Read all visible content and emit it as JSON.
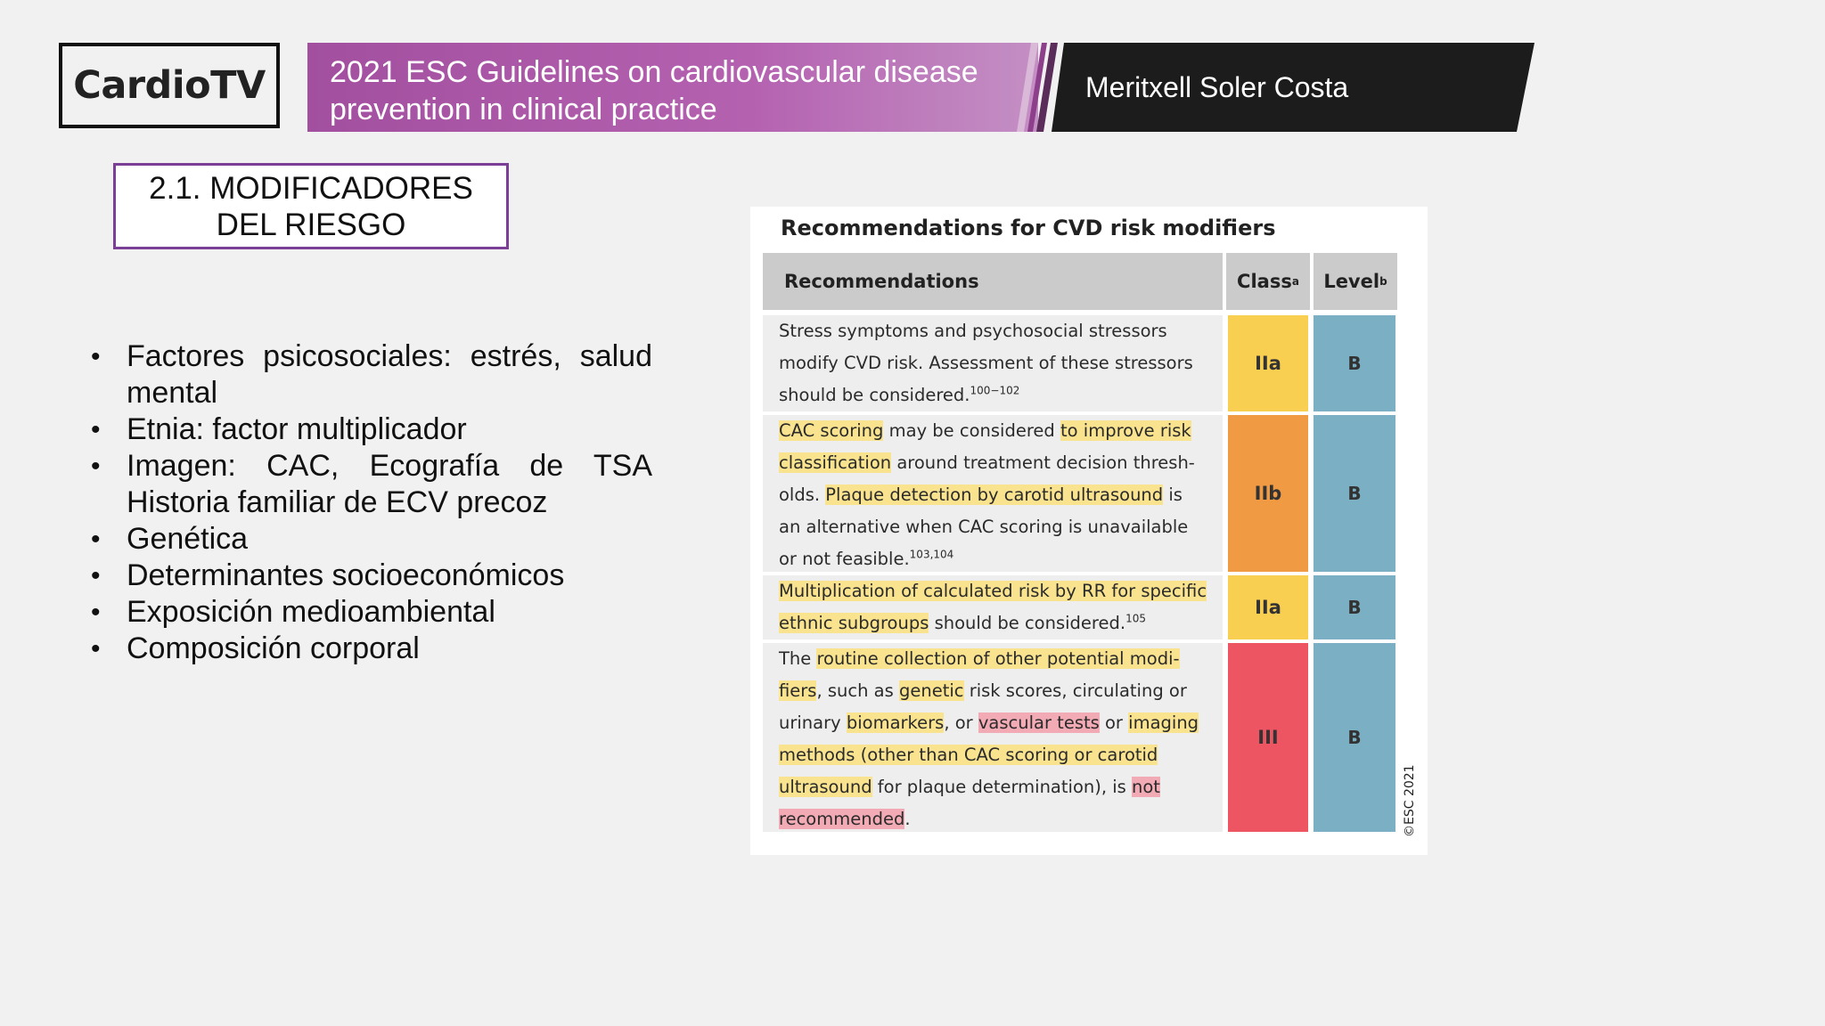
{
  "header": {
    "logo": "CardioTV",
    "title_line1": "2021 ESC Guidelines on cardiovascular disease",
    "title_line2": "prevention in clinical practice",
    "presenter": "Meritxell Soler Costa",
    "colors": {
      "title_band": "#a24f9f",
      "name_band": "#1c1c1c",
      "section_border": "#7b3f98"
    }
  },
  "section": {
    "line1": "2.1. MODIFICADORES",
    "line2": "DEL RIESGO"
  },
  "bullets": [
    "Factores psicosociales: estrés, salud mental",
    "Etnia: factor multiplicador",
    "Imagen: CAC, Ecografía de TSA Historia familiar de ECV precoz",
    "Genética",
    "Determinantes socioeconómicos",
    "Exposición medioambiental",
    "Composición corporal"
  ],
  "table": {
    "title": "Recommendations for CVD risk modifiers",
    "headers": {
      "recommendations": "Recommendations",
      "class": "Class",
      "class_sup": "a",
      "level": "Level",
      "level_sup": "b"
    },
    "rows": [
      {
        "class": "IIa",
        "level": "B",
        "class_color": "#f9cf52",
        "lines": [
          [
            {
              "t": "Stress symptoms and psychosocial stressors"
            }
          ],
          [
            {
              "t": "modify CVD risk. Assessment of these stressors"
            }
          ],
          [
            {
              "t": "should be considered."
            },
            {
              "t": "100−102",
              "sup": true
            }
          ]
        ]
      },
      {
        "class": "IIb",
        "level": "B",
        "class_color": "#f09a43",
        "lines": [
          [
            {
              "t": "CAC scoring",
              "hl": "y"
            },
            {
              "t": " may be considered "
            },
            {
              "t": "to improve risk",
              "hl": "y"
            }
          ],
          [
            {
              "t": "classification",
              "hl": "y"
            },
            {
              "t": " around treatment decision thresh-"
            }
          ],
          [
            {
              "t": "olds. "
            },
            {
              "t": "Plaque detection by carotid ultrasound",
              "hl": "y"
            },
            {
              "t": " is"
            }
          ],
          [
            {
              "t": "an alternative when CAC scoring is unavailable"
            }
          ],
          [
            {
              "t": "or not feasible."
            },
            {
              "t": "103,104",
              "sup": true
            }
          ]
        ]
      },
      {
        "class": "IIa",
        "level": "B",
        "class_color": "#f9cf52",
        "lines": [
          [
            {
              "t": "Multiplication of calculated risk by RR for specific",
              "hl": "y"
            }
          ],
          [
            {
              "t": "ethnic subgroups",
              "hl": "y"
            },
            {
              "t": " should be considered."
            },
            {
              "t": "105",
              "sup": true
            }
          ]
        ]
      },
      {
        "class": "III",
        "level": "B",
        "class_color": "#ee5563",
        "lines": [
          [
            {
              "t": "The "
            },
            {
              "t": "routine collection of other potential modi-",
              "hl": "y"
            }
          ],
          [
            {
              "t": "fiers",
              "hl": "y"
            },
            {
              "t": ", such as "
            },
            {
              "t": "genetic",
              "hl": "y"
            },
            {
              "t": " risk scores, circulating or"
            }
          ],
          [
            {
              "t": "urinary "
            },
            {
              "t": "biomarkers",
              "hl": "y"
            },
            {
              "t": ", or "
            },
            {
              "t": "vascular tests",
              "hl": "p"
            },
            {
              "t": " or "
            },
            {
              "t": "imaging",
              "hl": "y"
            }
          ],
          [
            {
              "t": "methods (other than CAC scoring or carotid",
              "hl": "y"
            }
          ],
          [
            {
              "t": "ultrasound",
              "hl": "y"
            },
            {
              "t": " for plaque determination), is "
            },
            {
              "t": "not",
              "hl": "p"
            }
          ],
          [
            {
              "t": "recommended",
              "hl": "p"
            },
            {
              "t": "."
            }
          ]
        ]
      }
    ],
    "copyright": "©ESC 2021"
  }
}
